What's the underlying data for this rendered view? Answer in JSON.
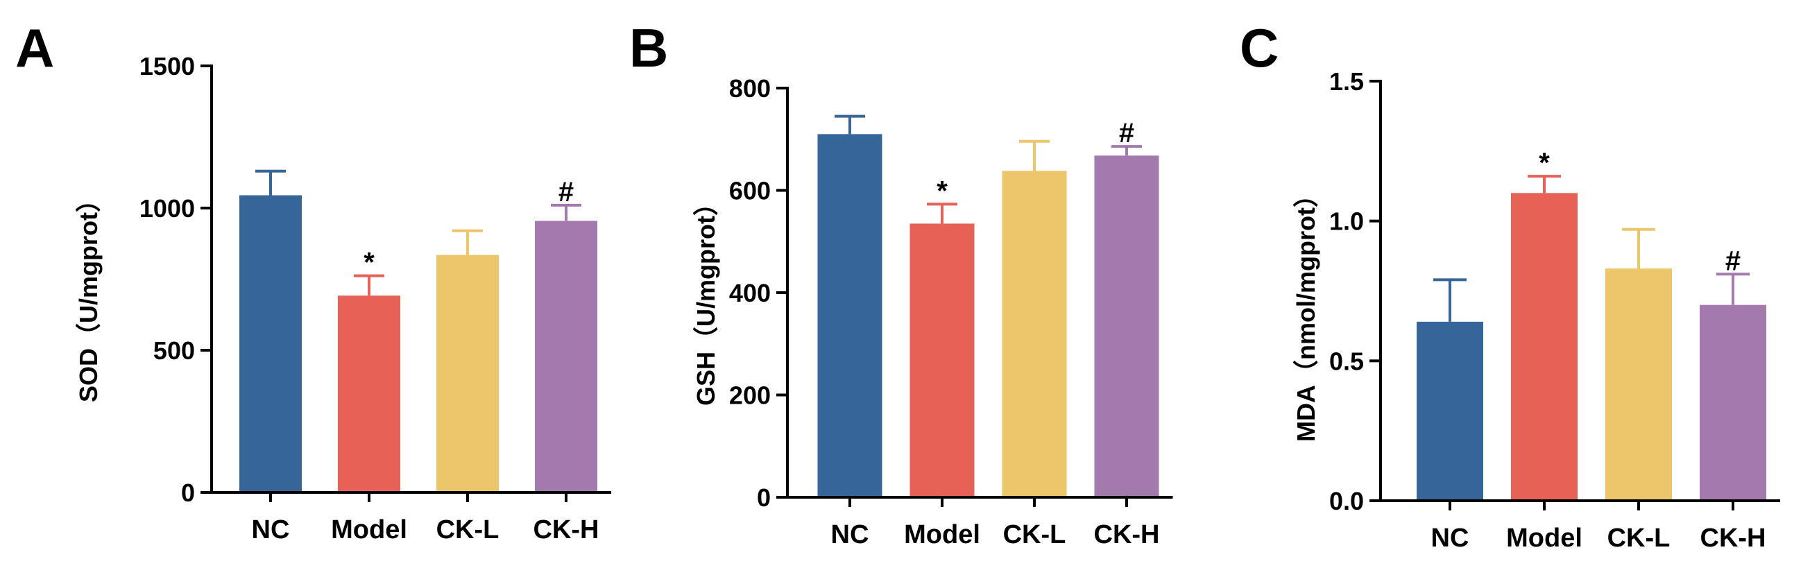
{
  "figure": {
    "colors": {
      "NC": "#36659a",
      "Model": "#e66257",
      "CK-L": "#edc56b",
      "CK-H": "#a47aae",
      "axis": "#000000"
    }
  },
  "chart_data": [
    {
      "type": "bar",
      "panel": "A",
      "title": "",
      "xlabel": "",
      "ylabel": "SOD（U/mgprot）",
      "ylim": [
        0,
        1500
      ],
      "yticks": [
        0,
        500,
        1000,
        1500
      ],
      "ytick_labels": [
        "0",
        "500",
        "1000",
        "1500"
      ],
      "categories": [
        "NC",
        "Model",
        "CK-L",
        "CK-H"
      ],
      "values": [
        1045,
        692,
        835,
        955
      ],
      "errors": [
        85,
        70,
        85,
        55
      ],
      "annotations": [
        "",
        "*",
        "",
        "#"
      ]
    },
    {
      "type": "bar",
      "panel": "B",
      "title": "",
      "xlabel": "",
      "ylabel": "GSH（U/mgprot）",
      "ylim": [
        0,
        800
      ],
      "yticks": [
        0,
        200,
        400,
        600,
        800
      ],
      "ytick_labels": [
        "0",
        "200",
        "400",
        "600",
        "800"
      ],
      "categories": [
        "NC",
        "Model",
        "CK-L",
        "CK-H"
      ],
      "values": [
        710,
        535,
        638,
        668
      ],
      "errors": [
        35,
        38,
        58,
        18
      ],
      "annotations": [
        "",
        "*",
        "",
        "#"
      ]
    },
    {
      "type": "bar",
      "panel": "C",
      "title": "",
      "xlabel": "",
      "ylabel": "MDA（nmol/mgprot）",
      "ylim": [
        0,
        1.5
      ],
      "yticks": [
        0,
        0.5,
        1.0,
        1.5
      ],
      "ytick_labels": [
        "0.0",
        "0.5",
        "1.0",
        "1.5"
      ],
      "categories": [
        "NC",
        "Model",
        "CK-L",
        "CK-H"
      ],
      "values": [
        0.64,
        1.1,
        0.83,
        0.7
      ],
      "errors": [
        0.15,
        0.06,
        0.14,
        0.11
      ],
      "annotations": [
        "",
        "*",
        "",
        "#"
      ]
    }
  ]
}
